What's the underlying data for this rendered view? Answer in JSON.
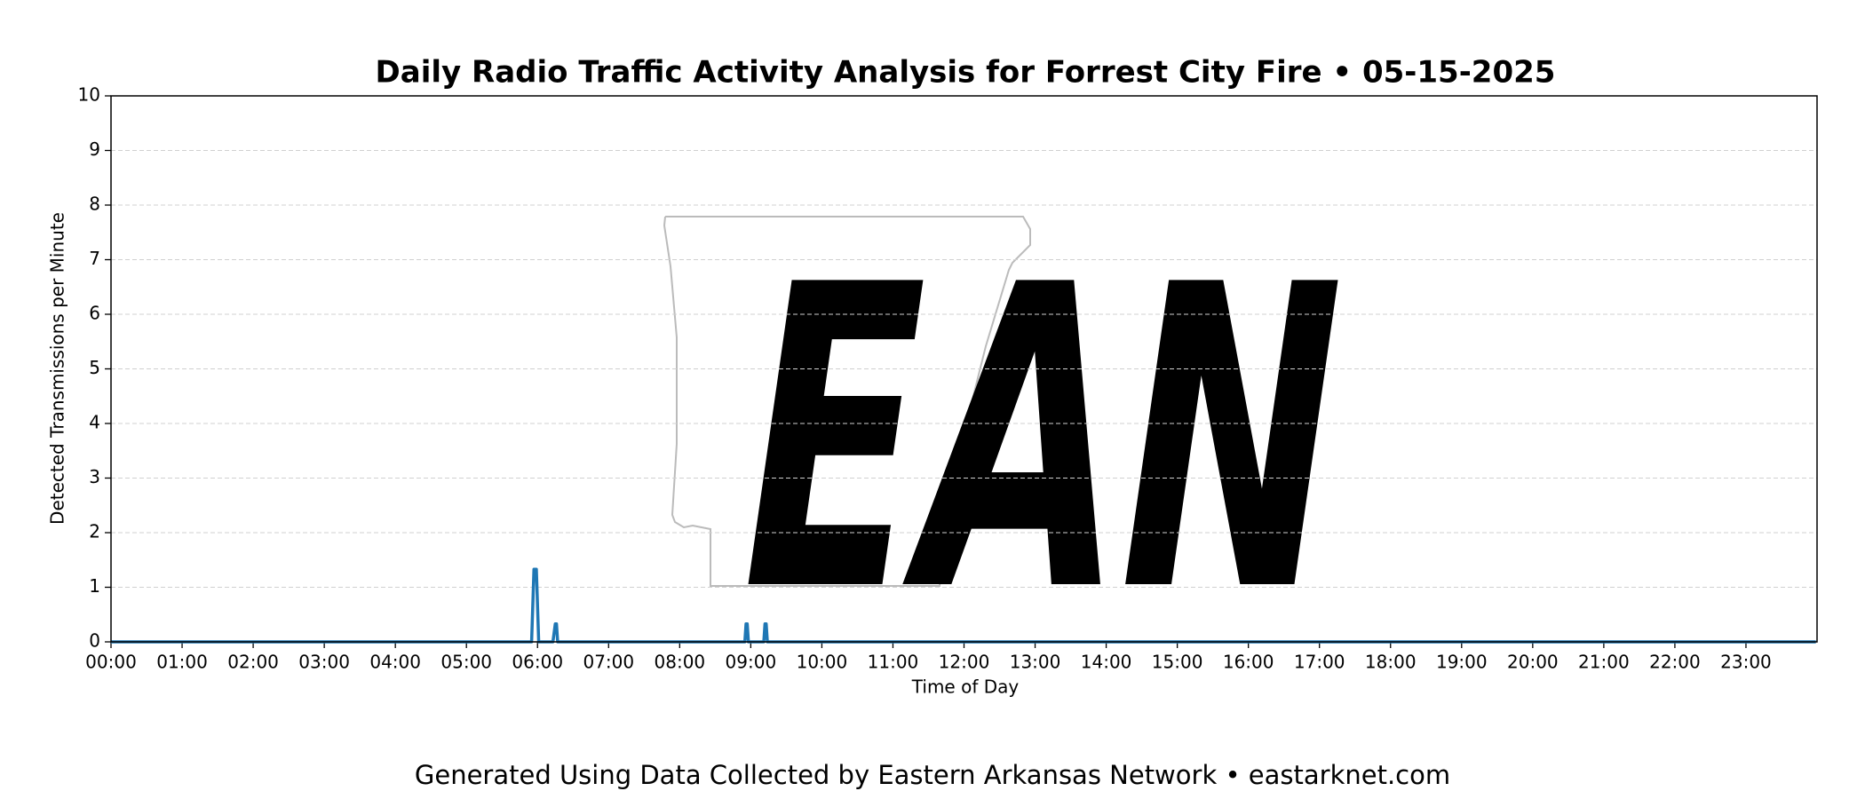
{
  "chart_data": {
    "type": "line",
    "title": "Daily Radio Traffic Activity Analysis for Forrest City Fire • 05-15-2025",
    "x_label": "Time of Day",
    "y_label": "Detected Transmissions per Minute",
    "x": [
      0,
      355,
      357,
      358,
      359,
      361,
      373,
      375,
      376,
      377,
      535,
      536,
      537,
      538,
      551,
      552,
      553,
      554,
      1439
    ],
    "values": [
      0,
      0,
      1.33,
      1.33,
      1.33,
      0,
      0,
      0.33,
      0.33,
      0,
      0,
      0.33,
      0.33,
      0,
      0,
      0.33,
      0.33,
      0,
      0
    ],
    "color": "#1f77b4",
    "xlim": [
      0,
      1440
    ],
    "xticks": [
      {
        "value": 0,
        "label": "00:00"
      },
      {
        "value": 60,
        "label": "01:00"
      },
      {
        "value": 120,
        "label": "02:00"
      },
      {
        "value": 180,
        "label": "03:00"
      },
      {
        "value": 240,
        "label": "04:00"
      },
      {
        "value": 300,
        "label": "05:00"
      },
      {
        "value": 360,
        "label": "06:00"
      },
      {
        "value": 420,
        "label": "07:00"
      },
      {
        "value": 480,
        "label": "08:00"
      },
      {
        "value": 540,
        "label": "09:00"
      },
      {
        "value": 600,
        "label": "10:00"
      },
      {
        "value": 660,
        "label": "11:00"
      },
      {
        "value": 720,
        "label": "12:00"
      },
      {
        "value": 780,
        "label": "13:00"
      },
      {
        "value": 840,
        "label": "14:00"
      },
      {
        "value": 900,
        "label": "15:00"
      },
      {
        "value": 960,
        "label": "16:00"
      },
      {
        "value": 1020,
        "label": "17:00"
      },
      {
        "value": 1080,
        "label": "18:00"
      },
      {
        "value": 1140,
        "label": "19:00"
      },
      {
        "value": 1200,
        "label": "20:00"
      },
      {
        "value": 1260,
        "label": "21:00"
      },
      {
        "value": 1320,
        "label": "22:00"
      },
      {
        "value": 1380,
        "label": "23:00"
      }
    ],
    "ylim": [
      0,
      10
    ],
    "yticks": [
      0,
      1,
      2,
      3,
      4,
      5,
      6,
      7,
      8,
      9,
      10
    ],
    "grid": true,
    "watermark": "EAN",
    "footer": "Generated Using Data Collected by Eastern Arkansas Network • eastarknet.com"
  }
}
